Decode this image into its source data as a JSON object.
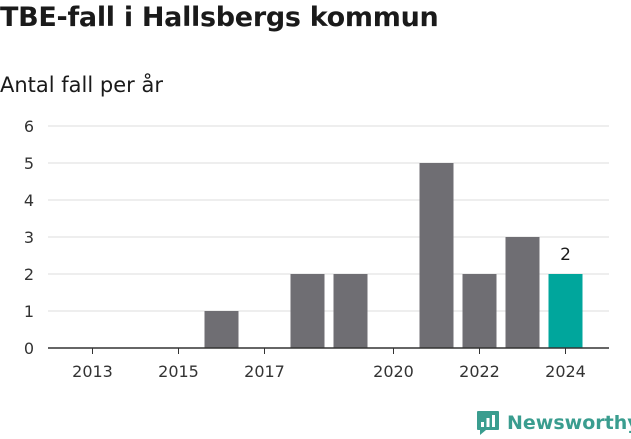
{
  "header": {
    "title": "TBE-fall i Hallsbergs kommun",
    "subtitle": "Antal fall per år"
  },
  "brand": {
    "name": "Newsworthy",
    "icon": "newsworthy-logo-icon",
    "color": "#3a9d8f"
  },
  "chart_data": {
    "type": "bar",
    "categories": [
      "2013",
      "2014",
      "2015",
      "2016",
      "2017",
      "2018",
      "2019",
      "2020",
      "2021",
      "2022",
      "2023",
      "2024"
    ],
    "values": [
      0,
      0,
      0,
      1,
      0,
      2,
      2,
      0,
      5,
      2,
      3,
      2
    ],
    "x_tick_labels": [
      "2013",
      "2015",
      "2017",
      "2020",
      "2022",
      "2024"
    ],
    "y_ticks": [
      0,
      1,
      2,
      3,
      4,
      5,
      6
    ],
    "ylim": [
      0,
      6
    ],
    "grid": true,
    "xlabel": "",
    "ylabel": "",
    "highlight_category": "2024",
    "data_labels": [
      {
        "category": "2024",
        "text": "2"
      }
    ],
    "colors": {
      "bar": "#6f6e73",
      "highlight": "#00a69c",
      "grid": "#dedede",
      "axis": "#333333"
    }
  }
}
